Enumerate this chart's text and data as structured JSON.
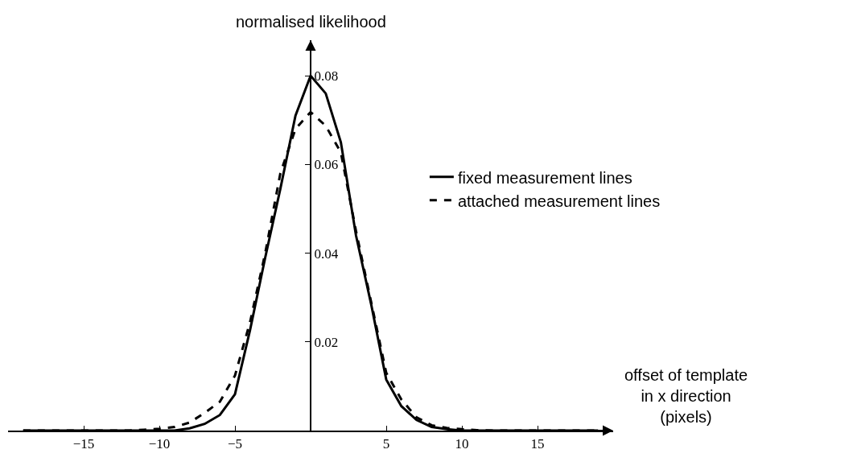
{
  "chart_data": {
    "type": "line",
    "xlabel": "offset of template\nin x direction\n(pixels)",
    "ylabel": "normalised likelihood",
    "x": [
      -19,
      -18,
      -17,
      -16,
      -15,
      -14,
      -13,
      -12,
      -11,
      -10,
      -9,
      -8,
      -7,
      -6,
      -5,
      -4,
      -3,
      -2,
      -1,
      0,
      1,
      2,
      3,
      4,
      5,
      6,
      7,
      8,
      9,
      10,
      11,
      12,
      13,
      14,
      15,
      16,
      17,
      18,
      19
    ],
    "series": [
      {
        "name": "fixed measurement lines",
        "color": "#000000",
        "line_style": "solid",
        "values": [
          0,
          0,
          0,
          0,
          0,
          0,
          0,
          0,
          0,
          0,
          0,
          0.0005,
          0.0015,
          0.0035,
          0.0082,
          0.0227,
          0.039,
          0.0545,
          0.071,
          0.08,
          0.076,
          0.065,
          0.044,
          0.0285,
          0.0115,
          0.0055,
          0.0024,
          0.0008,
          0.0003,
          0,
          0,
          0,
          0,
          0,
          0,
          0,
          0,
          0,
          0
        ]
      },
      {
        "name": "attached measurement lines",
        "color": "#000000",
        "line_style": "dashed",
        "values": [
          0,
          0,
          0,
          0,
          0,
          0,
          0,
          0,
          0.0002,
          0.0004,
          0.0008,
          0.0018,
          0.004,
          0.0065,
          0.0124,
          0.0245,
          0.04,
          0.058,
          0.068,
          0.0718,
          0.0687,
          0.0627,
          0.045,
          0.029,
          0.013,
          0.007,
          0.003,
          0.0012,
          0.0006,
          0.0003,
          0.0001,
          0,
          0,
          0,
          0,
          0,
          0,
          0,
          0
        ]
      }
    ],
    "xlim": [
      -20,
      20
    ],
    "ylim": [
      0,
      0.088
    ],
    "xticks": [
      {
        "value": -15,
        "label": "−15"
      },
      {
        "value": -10,
        "label": "−10"
      },
      {
        "value": -5,
        "label": "−5"
      },
      5,
      10,
      15
    ],
    "yticks": [
      0.02,
      0.04,
      0.06,
      0.08
    ],
    "grid": false,
    "legend": "right",
    "marker": "none"
  }
}
